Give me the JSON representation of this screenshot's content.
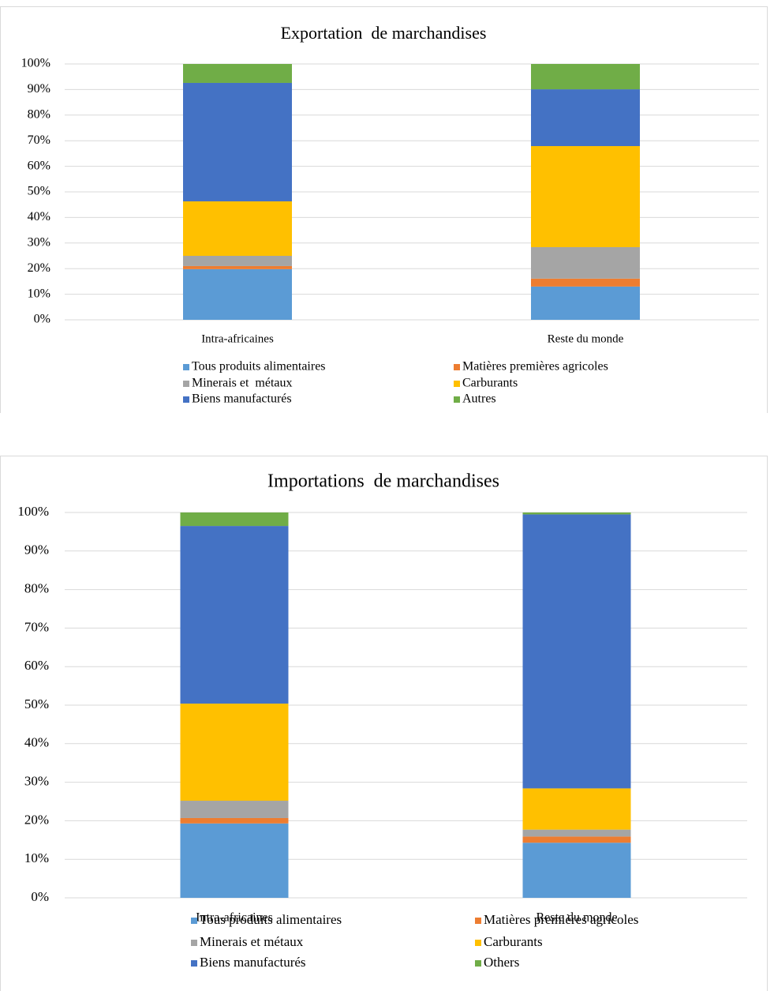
{
  "chart_data": [
    {
      "type": "stacked_bar",
      "title": "Exportation  de marchandises",
      "categories": [
        "Intra-africaines",
        "Reste du monde"
      ],
      "series": [
        {
          "name": "Tous produits alimentaires",
          "color": "#5b9bd5",
          "values": [
            19.8,
            13.0
          ]
        },
        {
          "name": "Matières premières agricoles",
          "color": "#ed7d31",
          "values": [
            1.2,
            3.1
          ]
        },
        {
          "name": "Minerais et  métaux",
          "color": "#a5a5a5",
          "values": [
            4.0,
            12.3
          ]
        },
        {
          "name": "Carburants",
          "color": "#ffc000",
          "values": [
            21.3,
            39.5
          ]
        },
        {
          "name": "Biens manufacturés",
          "color": "#4472c4",
          "values": [
            46.3,
            22.2
          ]
        },
        {
          "name": "Autres",
          "color": "#70ad47",
          "values": [
            7.4,
            9.9
          ]
        }
      ],
      "ylim": [
        0,
        100
      ],
      "yticks": [
        {
          "value": 0,
          "label": "0%"
        },
        {
          "value": 10,
          "label": "10%"
        },
        {
          "value": 20,
          "label": "20%"
        },
        {
          "value": 30,
          "label": "30%"
        },
        {
          "value": 40,
          "label": "40%"
        },
        {
          "value": 50,
          "label": "50%"
        },
        {
          "value": 60,
          "label": "60%"
        },
        {
          "value": 70,
          "label": "70%"
        },
        {
          "value": 80,
          "label": "80%"
        },
        {
          "value": 90,
          "label": "90%"
        },
        {
          "value": 100,
          "label": "100%"
        }
      ],
      "grid": true,
      "legend": "bottom"
    },
    {
      "type": "stacked_bar",
      "title": "Importations  de marchandises",
      "categories": [
        "Intra-africaines",
        "Reste du monde"
      ],
      "series": [
        {
          "name": "Tous produits alimentaires",
          "color": "#5b9bd5",
          "values": [
            19.3,
            14.3
          ]
        },
        {
          "name": "Matières premières agricoles",
          "color": "#ed7d31",
          "values": [
            1.4,
            1.6
          ]
        },
        {
          "name": "Minerais et métaux",
          "color": "#a5a5a5",
          "values": [
            4.5,
            1.8
          ]
        },
        {
          "name": "Carburants",
          "color": "#ffc000",
          "values": [
            25.2,
            10.7
          ]
        },
        {
          "name": "Biens manufacturés",
          "color": "#4472c4",
          "values": [
            46.1,
            71.1
          ]
        },
        {
          "name": "Others",
          "color": "#70ad47",
          "values": [
            3.5,
            0.5
          ]
        }
      ],
      "ylim": [
        0,
        100
      ],
      "yticks": [
        {
          "value": 0,
          "label": "0%"
        },
        {
          "value": 10,
          "label": "10%"
        },
        {
          "value": 20,
          "label": "20%"
        },
        {
          "value": 30,
          "label": "30%"
        },
        {
          "value": 40,
          "label": "40%"
        },
        {
          "value": 50,
          "label": "50%"
        },
        {
          "value": 60,
          "label": "60%"
        },
        {
          "value": 70,
          "label": "70%"
        },
        {
          "value": 80,
          "label": "80%"
        },
        {
          "value": 90,
          "label": "90%"
        },
        {
          "value": 100,
          "label": "100%"
        }
      ],
      "grid": true,
      "legend": "bottom"
    }
  ]
}
